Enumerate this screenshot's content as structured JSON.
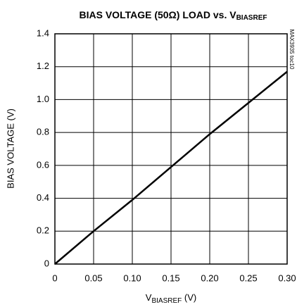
{
  "chart_data": {
    "type": "line",
    "title": {
      "main": "BIAS VOLTAGE (50Ω) LOAD vs. V",
      "subscript": "BIASREF"
    },
    "x_label": {
      "main": "V",
      "subscript": "BIASREF",
      "unit": " (V)"
    },
    "y_label": "BIAS VOLTAGE (V)",
    "annotation": "MAX3935 toc10",
    "x": [
      0,
      0.05,
      0.1,
      0.15,
      0.2,
      0.25,
      0.3
    ],
    "series": [
      {
        "name": "BIAS VOLTAGE",
        "color": "#000000",
        "values": [
          0,
          0.2,
          0.39,
          0.59,
          0.79,
          0.98,
          1.17
        ]
      }
    ],
    "xlim": [
      0,
      0.3
    ],
    "xticks": [
      0,
      0.05,
      {
        "value": 0.1,
        "label": "0.10"
      },
      0.15,
      {
        "value": 0.2,
        "label": "0.20"
      },
      0.25,
      {
        "value": 0.3,
        "label": "0.30"
      }
    ],
    "ylim": [
      0,
      1.4
    ],
    "yticks": [
      0,
      0.2,
      0.4,
      0.6,
      0.8,
      {
        "value": 1.0,
        "label": "1.0"
      },
      1.2,
      1.4
    ],
    "grid": true
  }
}
